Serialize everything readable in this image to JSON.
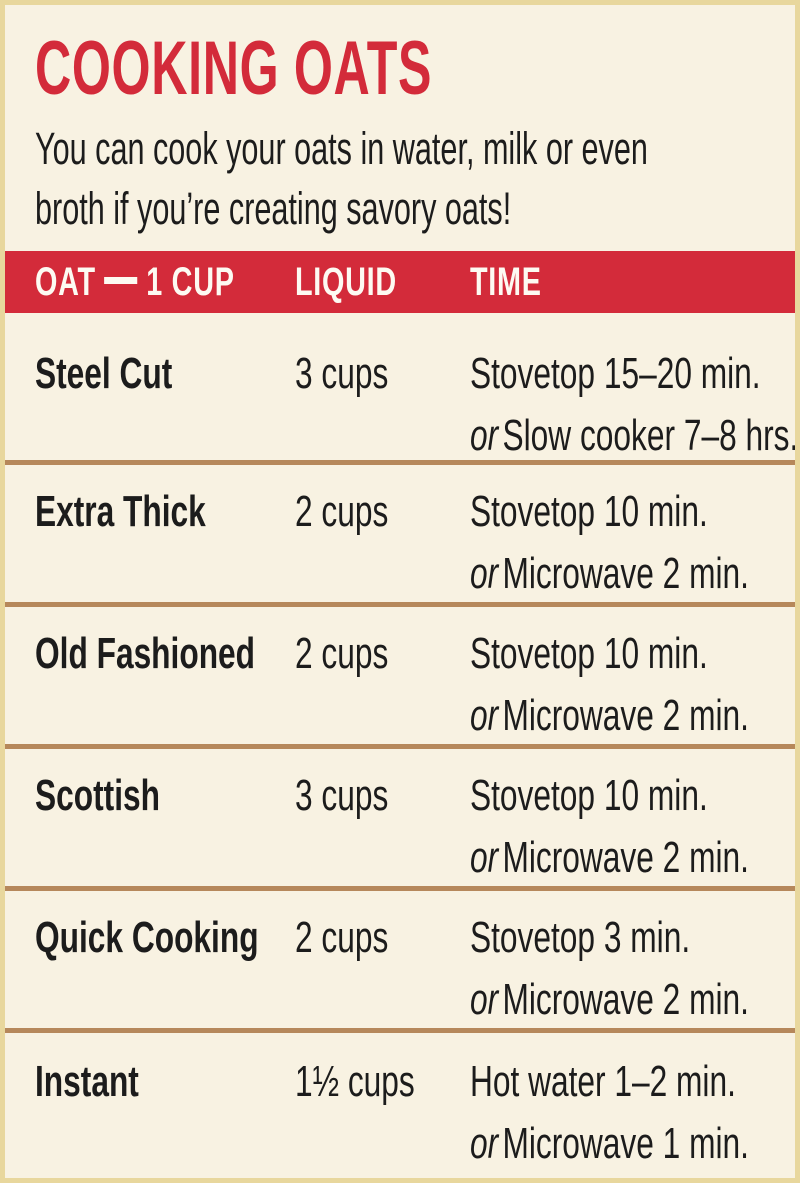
{
  "card": {
    "title": "COOKING OATS",
    "subtitle_lines": [
      "You can cook your oats in water, milk or even",
      "broth if you’re creating savory oats!"
    ]
  },
  "table": {
    "headers": {
      "col1_full": "OAT — 1 CUP",
      "col1_pre": "OAT",
      "col1_post": "1 CUP",
      "col2": "LIQUID",
      "col3": "TIME"
    },
    "rows": [
      {
        "oat": "Steel Cut",
        "liquid": "3 cups",
        "time_line1": "Stovetop 15–20 min.",
        "time_or": "or",
        "time_line2": "Slow cooker 7–8 hrs."
      },
      {
        "oat": "Extra Thick",
        "liquid": "2 cups",
        "time_line1": "Stovetop 10 min.",
        "time_or": "or",
        "time_line2": "Microwave 2 min."
      },
      {
        "oat": "Old Fashioned",
        "liquid": "2 cups",
        "time_line1": "Stovetop 10 min.",
        "time_or": "or",
        "time_line2": "Microwave 2 min."
      },
      {
        "oat": "Scottish",
        "liquid": "3 cups",
        "time_line1": "Stovetop 10 min.",
        "time_or": "or",
        "time_line2": "Microwave 2 min."
      },
      {
        "oat": "Quick Cooking",
        "liquid": "2 cups",
        "time_line1": "Stovetop 3 min.",
        "time_or": "or",
        "time_line2": "Microwave 2 min."
      },
      {
        "oat": "Instant",
        "liquid": "1½ cups",
        "time_line1": "Hot water 1–2 min.",
        "time_or": "or",
        "time_line2": "Microwave 1 min."
      }
    ]
  },
  "colors": {
    "accent_red": "#d32b3a",
    "background_cream": "#f8f2e2",
    "border_khaki": "#e8d79d",
    "separator_brown": "#b6885b",
    "text_black": "#1c1c1c",
    "header_text": "#fdfaf2"
  }
}
